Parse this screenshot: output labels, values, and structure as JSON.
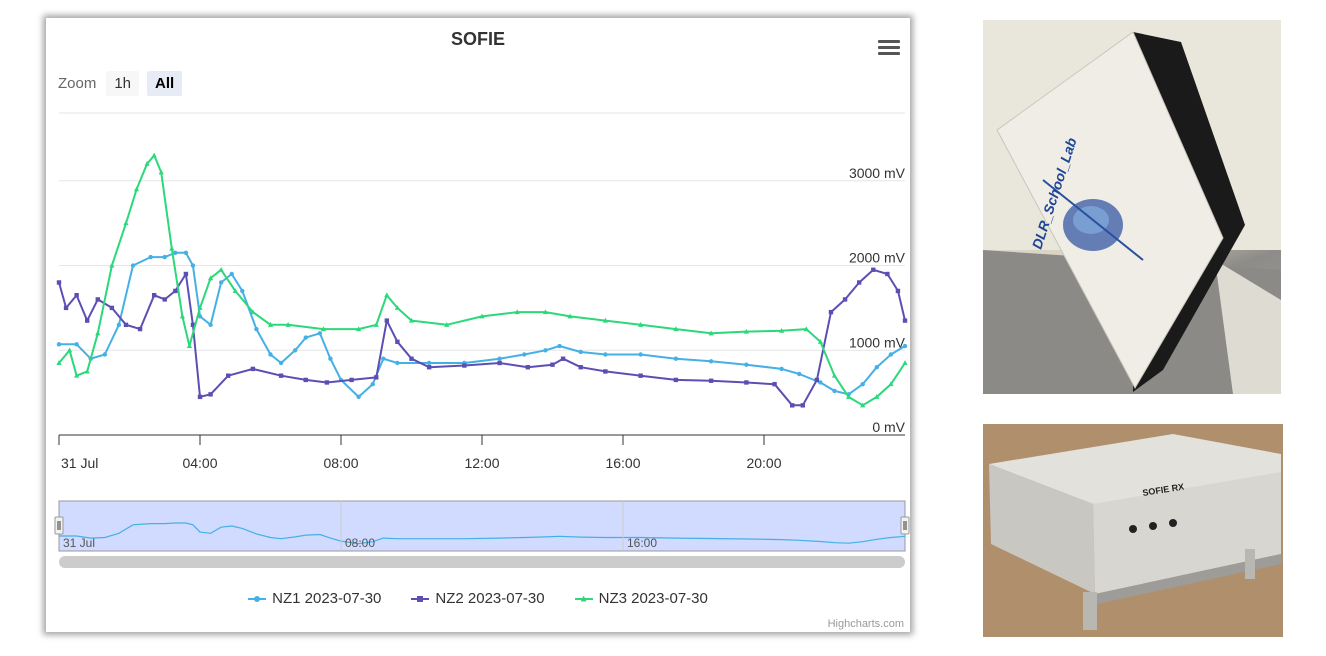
{
  "chart": {
    "title": "SOFIE",
    "zoom_label": "Zoom",
    "zoom_buttons": [
      "1h",
      "All"
    ],
    "zoom_selected": "All",
    "credits": "Highcharts.com",
    "menu_icon": "hamburger-menu-icon"
  },
  "chart_data": {
    "type": "line",
    "title": "SOFIE",
    "x_ticks": [
      "31 Jul",
      "04:00",
      "08:00",
      "12:00",
      "16:00",
      "20:00"
    ],
    "y_ticks": [
      "0 mV",
      "1000 mV",
      "2000 mV",
      "3000 mV"
    ],
    "ylim": [
      0,
      3800
    ],
    "xlim_hours": [
      0,
      24
    ],
    "grid": true,
    "legend_position": "bottom",
    "navigator_ticks": [
      "31 Jul",
      "08:00",
      "16:00"
    ],
    "series": [
      {
        "name": "NZ1 2023-07-30",
        "color": "#45b0e6",
        "marker": "circle",
        "points": [
          [
            0.0,
            1070
          ],
          [
            0.5,
            1070
          ],
          [
            0.9,
            900
          ],
          [
            1.3,
            950
          ],
          [
            1.7,
            1300
          ],
          [
            2.1,
            2000
          ],
          [
            2.6,
            2100
          ],
          [
            3.0,
            2100
          ],
          [
            3.3,
            2150
          ],
          [
            3.6,
            2150
          ],
          [
            3.8,
            2000
          ],
          [
            4.0,
            1400
          ],
          [
            4.3,
            1300
          ],
          [
            4.6,
            1800
          ],
          [
            4.9,
            1900
          ],
          [
            5.2,
            1700
          ],
          [
            5.6,
            1250
          ],
          [
            6.0,
            950
          ],
          [
            6.3,
            850
          ],
          [
            6.7,
            1000
          ],
          [
            7.0,
            1150
          ],
          [
            7.4,
            1200
          ],
          [
            7.7,
            900
          ],
          [
            8.0,
            650
          ],
          [
            8.5,
            450
          ],
          [
            8.9,
            600
          ],
          [
            9.2,
            900
          ],
          [
            9.6,
            850
          ],
          [
            10.5,
            850
          ],
          [
            11.5,
            850
          ],
          [
            12.5,
            900
          ],
          [
            13.2,
            950
          ],
          [
            13.8,
            1000
          ],
          [
            14.2,
            1050
          ],
          [
            14.8,
            980
          ],
          [
            15.5,
            950
          ],
          [
            16.5,
            950
          ],
          [
            17.5,
            900
          ],
          [
            18.5,
            870
          ],
          [
            19.5,
            830
          ],
          [
            20.5,
            780
          ],
          [
            21.0,
            720
          ],
          [
            21.6,
            620
          ],
          [
            22.0,
            520
          ],
          [
            22.4,
            480
          ],
          [
            22.8,
            600
          ],
          [
            23.2,
            800
          ],
          [
            23.6,
            950
          ],
          [
            24.0,
            1050
          ]
        ]
      },
      {
        "name": "NZ2 2023-07-30",
        "color": "#5c4fb3",
        "marker": "square",
        "points": [
          [
            0.0,
            1800
          ],
          [
            0.2,
            1500
          ],
          [
            0.5,
            1650
          ],
          [
            0.8,
            1350
          ],
          [
            1.1,
            1600
          ],
          [
            1.5,
            1500
          ],
          [
            1.9,
            1300
          ],
          [
            2.3,
            1250
          ],
          [
            2.7,
            1650
          ],
          [
            3.0,
            1600
          ],
          [
            3.3,
            1700
          ],
          [
            3.6,
            1900
          ],
          [
            3.8,
            1300
          ],
          [
            4.0,
            450
          ],
          [
            4.3,
            480
          ],
          [
            4.8,
            700
          ],
          [
            5.5,
            780
          ],
          [
            6.3,
            700
          ],
          [
            7.0,
            650
          ],
          [
            7.6,
            620
          ],
          [
            8.3,
            650
          ],
          [
            9.0,
            680
          ],
          [
            9.3,
            1350
          ],
          [
            9.6,
            1100
          ],
          [
            10.0,
            900
          ],
          [
            10.5,
            800
          ],
          [
            11.5,
            820
          ],
          [
            12.5,
            850
          ],
          [
            13.3,
            800
          ],
          [
            14.0,
            830
          ],
          [
            14.3,
            900
          ],
          [
            14.8,
            800
          ],
          [
            15.5,
            750
          ],
          [
            16.5,
            700
          ],
          [
            17.5,
            650
          ],
          [
            18.5,
            640
          ],
          [
            19.5,
            620
          ],
          [
            20.3,
            600
          ],
          [
            20.8,
            350
          ],
          [
            21.1,
            350
          ],
          [
            21.5,
            650
          ],
          [
            21.9,
            1450
          ],
          [
            22.3,
            1600
          ],
          [
            22.7,
            1800
          ],
          [
            23.1,
            1950
          ],
          [
            23.5,
            1900
          ],
          [
            23.8,
            1700
          ],
          [
            24.0,
            1350
          ]
        ]
      },
      {
        "name": "NZ3 2023-07-30",
        "color": "#2bd87a",
        "marker": "triangle",
        "points": [
          [
            0.0,
            850
          ],
          [
            0.3,
            1000
          ],
          [
            0.5,
            700
          ],
          [
            0.8,
            750
          ],
          [
            1.1,
            1200
          ],
          [
            1.5,
            2000
          ],
          [
            1.9,
            2500
          ],
          [
            2.2,
            2900
          ],
          [
            2.5,
            3200
          ],
          [
            2.7,
            3300
          ],
          [
            2.9,
            3100
          ],
          [
            3.2,
            2200
          ],
          [
            3.5,
            1400
          ],
          [
            3.7,
            1050
          ],
          [
            4.0,
            1500
          ],
          [
            4.3,
            1850
          ],
          [
            4.6,
            1950
          ],
          [
            5.0,
            1700
          ],
          [
            5.5,
            1450
          ],
          [
            6.0,
            1300
          ],
          [
            6.5,
            1300
          ],
          [
            7.5,
            1250
          ],
          [
            8.5,
            1250
          ],
          [
            9.0,
            1300
          ],
          [
            9.3,
            1650
          ],
          [
            9.6,
            1500
          ],
          [
            10.0,
            1350
          ],
          [
            11.0,
            1300
          ],
          [
            12.0,
            1400
          ],
          [
            13.0,
            1450
          ],
          [
            13.8,
            1450
          ],
          [
            14.5,
            1400
          ],
          [
            15.5,
            1350
          ],
          [
            16.5,
            1300
          ],
          [
            17.5,
            1250
          ],
          [
            18.5,
            1200
          ],
          [
            19.5,
            1220
          ],
          [
            20.5,
            1230
          ],
          [
            21.2,
            1250
          ],
          [
            21.6,
            1100
          ],
          [
            22.0,
            700
          ],
          [
            22.4,
            450
          ],
          [
            22.8,
            350
          ],
          [
            23.2,
            450
          ],
          [
            23.6,
            600
          ],
          [
            24.0,
            850
          ]
        ]
      }
    ]
  },
  "photos": {
    "top": "photo-sofie-antenna",
    "bottom": "photo-sofie-rx-receiver",
    "top_photo_text": "DLR_School_Lab",
    "bottom_photo_text": "SOFIE RX"
  }
}
